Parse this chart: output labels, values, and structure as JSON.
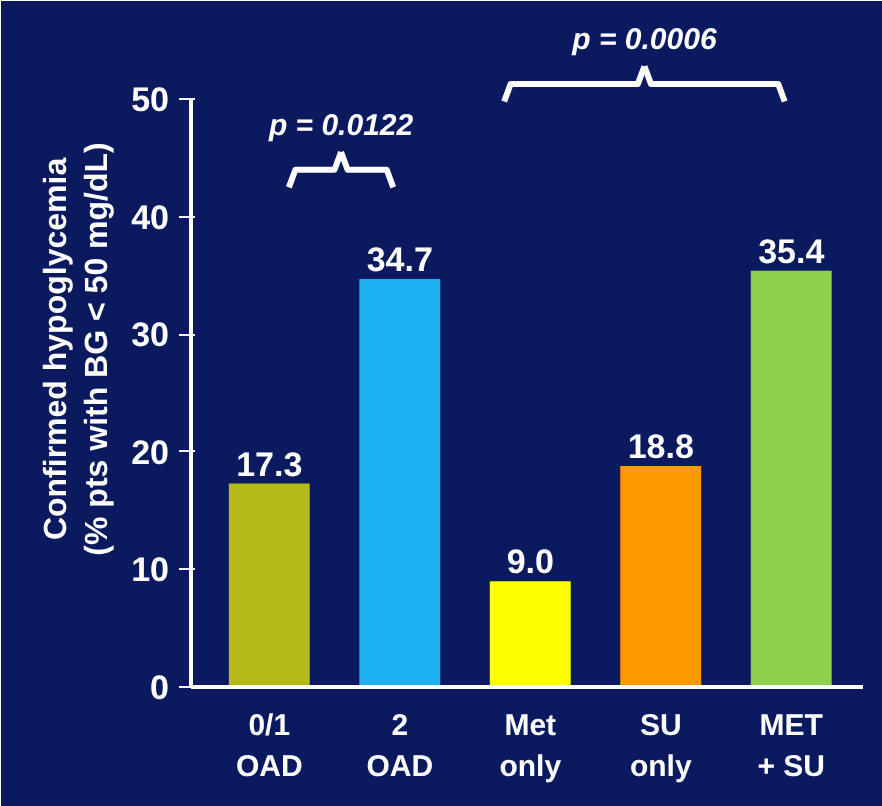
{
  "chart_data": {
    "type": "bar",
    "ylabel": "Confirmed hypoglycemia\n(% pts with BG < 50 mg/dL)",
    "categories": [
      "0/1\nOAD",
      "2\nOAD",
      "Met\nonly",
      "SU\nonly",
      "MET\n+ SU"
    ],
    "values": [
      17.3,
      34.7,
      9.0,
      18.8,
      35.4
    ],
    "colors": [
      "#b4bb19",
      "#1db0f0",
      "#ffff00",
      "#ff9900",
      "#8fd14f"
    ],
    "value_labels": [
      "17.3",
      "34.7",
      "9.0",
      "18.8",
      "35.4"
    ],
    "ylim": [
      0,
      50
    ],
    "yticks": [
      0,
      10,
      20,
      30,
      40,
      50
    ],
    "grid": false,
    "annotations": [
      "p = 0.0122",
      "p = 0.0006"
    ]
  }
}
